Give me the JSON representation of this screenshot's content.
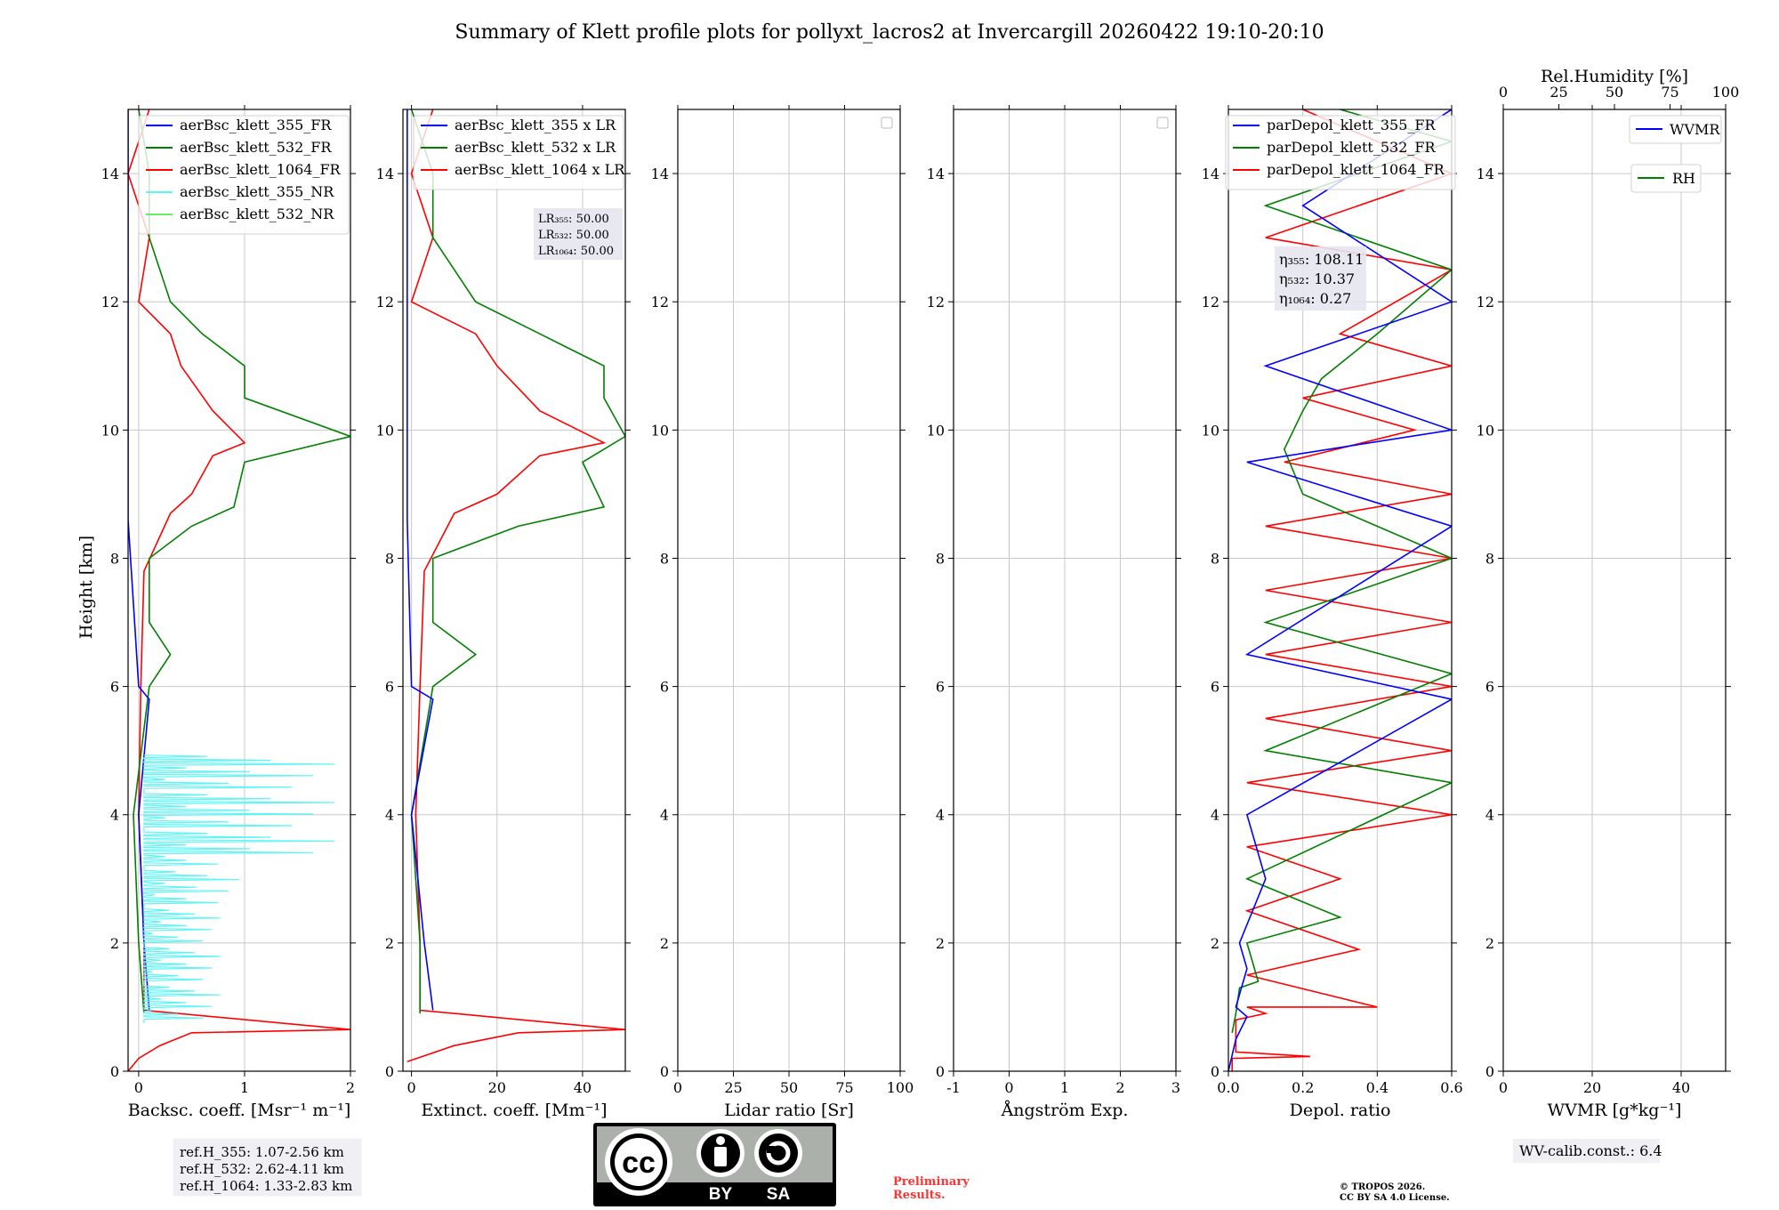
{
  "title": "Summary of Klett profile plots for pollyxt_lacros2 at Invercargill 20260422 19:10-20:10",
  "colors": {
    "c355": "#0000ff",
    "c532": "#008000",
    "c1064": "#ff0000",
    "cnr355": "#5ff5f5",
    "cnr532": "#66ee66",
    "grid": "#c8c8c8"
  },
  "ref_box": [
    "ref.H_355: 1.07-2.56 km",
    "ref.H_532: 2.62-4.11 km",
    "ref.H_1064: 1.33-2.83 km"
  ],
  "license_badge": {
    "cc": "cc",
    "by": "BY",
    "sa": "SA"
  },
  "preliminary": [
    "Preliminary",
    "Results."
  ],
  "copyright": [
    "© TROPOS 2026.",
    "CC BY SA 4.0 License."
  ],
  "wv_calib": "WV-calib.const.: 6.4",
  "chart_data": [
    {
      "type": "line",
      "id": "backscatter",
      "xlabel": "Backsc. coeff. [Msr⁻¹ m⁻¹]",
      "ylabel": "Height [km]",
      "xlim": [
        -0.1,
        2.0
      ],
      "ylim": [
        0,
        15
      ],
      "xticks": [
        0,
        1,
        2
      ],
      "yticks": [
        0,
        2,
        4,
        6,
        8,
        10,
        12,
        14
      ],
      "legend": [
        "aerBsc_klett_355_FR",
        "aerBsc_klett_532_FR",
        "aerBsc_klett_1064_FR",
        "aerBsc_klett_355_NR",
        "aerBsc_klett_532_NR"
      ],
      "series": [
        {
          "name": "aerBsc_klett_1064_FR",
          "color": "c1064",
          "points": [
            [
              -0.1,
              0
            ],
            [
              0.0,
              0.2
            ],
            [
              0.2,
              0.4
            ],
            [
              0.5,
              0.6
            ],
            [
              2.0,
              0.65
            ],
            [
              0.05,
              0.95
            ],
            [
              0.05,
              2.0
            ],
            [
              0.0,
              4.0
            ],
            [
              0.02,
              6.0
            ],
            [
              0.05,
              7.8
            ],
            [
              0.3,
              8.7
            ],
            [
              0.5,
              9.0
            ],
            [
              0.7,
              9.6
            ],
            [
              1.0,
              9.8
            ],
            [
              0.7,
              10.3
            ],
            [
              0.4,
              11.0
            ],
            [
              0.3,
              11.5
            ],
            [
              0.0,
              12.0
            ],
            [
              0.1,
              13.0
            ],
            [
              -0.1,
              14.0
            ],
            [
              0.1,
              15.0
            ]
          ]
        },
        {
          "name": "aerBsc_klett_532_FR",
          "color": "c532",
          "points": [
            [
              0.05,
              0.9
            ],
            [
              0.0,
              2.0
            ],
            [
              -0.05,
              4.0
            ],
            [
              0.1,
              6.0
            ],
            [
              0.3,
              6.5
            ],
            [
              0.1,
              7.0
            ],
            [
              0.1,
              8.0
            ],
            [
              0.5,
              8.5
            ],
            [
              0.9,
              8.8
            ],
            [
              1.0,
              9.5
            ],
            [
              2.0,
              9.9
            ],
            [
              1.0,
              10.5
            ],
            [
              1.0,
              11.0
            ],
            [
              0.6,
              11.5
            ],
            [
              0.3,
              12.0
            ],
            [
              0.1,
              13.0
            ],
            [
              0.1,
              14.0
            ],
            [
              0.0,
              15.0
            ]
          ]
        },
        {
          "name": "aerBsc_klett_355_FR",
          "color": "c355",
          "points": [
            [
              0.1,
              0.95
            ],
            [
              0.05,
              2.0
            ],
            [
              0.0,
              4.0
            ],
            [
              0.1,
              5.8
            ],
            [
              0.0,
              6.0
            ],
            [
              -0.1,
              8.6
            ],
            [
              -0.1,
              9.5
            ],
            [
              -0.1,
              10.0
            ],
            [
              -0.1,
              12.0
            ],
            [
              -0.1,
              15.0
            ]
          ]
        }
      ]
    },
    {
      "type": "line",
      "id": "extinction",
      "xlabel": "Extinct. coeff. [Mm⁻¹]",
      "xlim": [
        -2,
        50
      ],
      "ylim": [
        0,
        15
      ],
      "xticks": [
        0,
        20,
        40
      ],
      "yticks": [
        0,
        2,
        4,
        6,
        8,
        10,
        12,
        14
      ],
      "legend": [
        "aerBsc_klett_355 x LR",
        "aerBsc_klett_532 x LR",
        "aerBsc_klett_1064 x LR"
      ],
      "lidar_ratios": [
        "LR₃₅₅: 50.00",
        "LR₅₃₂: 50.00",
        "LR₁₀₆₄: 50.00"
      ],
      "series": [
        {
          "name": "1064",
          "color": "c1064",
          "points": [
            [
              -1,
              0.15
            ],
            [
              10,
              0.4
            ],
            [
              25,
              0.6
            ],
            [
              50,
              0.65
            ],
            [
              2,
              0.95
            ],
            [
              2,
              2.0
            ],
            [
              1,
              4.0
            ],
            [
              2,
              6.0
            ],
            [
              3,
              7.8
            ],
            [
              10,
              8.7
            ],
            [
              20,
              9.0
            ],
            [
              30,
              9.6
            ],
            [
              45,
              9.8
            ],
            [
              30,
              10.3
            ],
            [
              20,
              11.0
            ],
            [
              15,
              11.5
            ],
            [
              0,
              12.0
            ],
            [
              5,
              13.0
            ],
            [
              0,
              14.0
            ],
            [
              5,
              15.0
            ]
          ]
        },
        {
          "name": "532",
          "color": "c532",
          "points": [
            [
              2,
              0.9
            ],
            [
              2,
              2.0
            ],
            [
              0,
              4.0
            ],
            [
              5,
              6.0
            ],
            [
              15,
              6.5
            ],
            [
              5,
              7.0
            ],
            [
              5,
              8.0
            ],
            [
              25,
              8.5
            ],
            [
              45,
              8.8
            ],
            [
              40,
              9.5
            ],
            [
              50,
              9.9
            ],
            [
              45,
              10.5
            ],
            [
              45,
              11.0
            ],
            [
              30,
              11.5
            ],
            [
              15,
              12.0
            ],
            [
              5,
              13.0
            ],
            [
              5,
              14.0
            ],
            [
              0,
              15.0
            ]
          ]
        },
        {
          "name": "355",
          "color": "c355",
          "points": [
            [
              5,
              0.95
            ],
            [
              3,
              2.0
            ],
            [
              0,
              4.0
            ],
            [
              5,
              5.8
            ],
            [
              0,
              6.0
            ],
            [
              -1,
              8.6
            ],
            [
              -1,
              12.0
            ],
            [
              -1,
              15.0
            ]
          ]
        }
      ]
    },
    {
      "type": "line",
      "id": "lidar_ratio",
      "xlabel": "Lidar ratio [Sr]",
      "xlim": [
        0,
        100
      ],
      "ylim": [
        0,
        15
      ],
      "xticks": [
        0,
        25,
        50,
        75,
        100
      ],
      "yticks": [
        0,
        2,
        4,
        6,
        8,
        10,
        12,
        14
      ],
      "series": []
    },
    {
      "type": "line",
      "id": "angstrom",
      "xlabel": "Ångström Exp.",
      "xlim": [
        -1,
        3
      ],
      "ylim": [
        0,
        15
      ],
      "xticks": [
        -1,
        0,
        1,
        2,
        3
      ],
      "yticks": [
        0,
        2,
        4,
        6,
        8,
        10,
        12,
        14
      ],
      "series": []
    },
    {
      "type": "line",
      "id": "depol",
      "xlabel": "Depol. ratio",
      "xlim": [
        0,
        0.6
      ],
      "ylim": [
        0,
        15
      ],
      "xticks": [
        0.0,
        0.2,
        0.4,
        0.6
      ],
      "xtick_labels": [
        "0.0",
        "0.2",
        "0.4",
        "0.6"
      ],
      "yticks": [
        0,
        2,
        4,
        6,
        8,
        10,
        12,
        14
      ],
      "legend": [
        "parDepol_klett_355_FR",
        "parDepol_klett_532_FR",
        "parDepol_klett_1064_FR"
      ],
      "eta": [
        "η₃₅₅: 108.11",
        "η₅₃₂: 10.37",
        "η₁₀₆₄: 0.27"
      ],
      "series": [
        {
          "name": "1064",
          "color": "c1064",
          "points": [
            [
              0.01,
              0.0
            ],
            [
              0.01,
              0.2
            ],
            [
              0.22,
              0.23
            ],
            [
              0.02,
              0.3
            ],
            [
              0.02,
              0.8
            ],
            [
              0.1,
              0.9
            ],
            [
              0.05,
              1.0
            ],
            [
              0.4,
              1.0
            ],
            [
              0.05,
              1.5
            ],
            [
              0.35,
              1.9
            ],
            [
              0.05,
              2.5
            ],
            [
              0.3,
              3.0
            ],
            [
              0.05,
              3.5
            ],
            [
              0.6,
              4.0
            ],
            [
              0.05,
              4.5
            ],
            [
              0.6,
              5.0
            ],
            [
              0.1,
              5.5
            ],
            [
              0.6,
              6.0
            ],
            [
              0.1,
              6.5
            ],
            [
              0.6,
              7.0
            ],
            [
              0.1,
              7.5
            ],
            [
              0.6,
              8.0
            ],
            [
              0.1,
              8.5
            ],
            [
              0.6,
              9.0
            ],
            [
              0.15,
              9.5
            ],
            [
              0.5,
              10.0
            ],
            [
              0.2,
              10.5
            ],
            [
              0.6,
              11.0
            ],
            [
              0.3,
              11.5
            ],
            [
              0.6,
              12.5
            ],
            [
              0.1,
              13.0
            ],
            [
              0.6,
              14.0
            ],
            [
              0.2,
              15.0
            ]
          ]
        },
        {
          "name": "532",
          "color": "c532",
          "points": [
            [
              0.01,
              0.6
            ],
            [
              0.02,
              0.9
            ],
            [
              0.03,
              1.3
            ],
            [
              0.08,
              1.4
            ],
            [
              0.05,
              2.0
            ],
            [
              0.3,
              2.4
            ],
            [
              0.05,
              3.0
            ],
            [
              0.6,
              4.5
            ],
            [
              0.1,
              5.0
            ],
            [
              0.6,
              6.2
            ],
            [
              0.1,
              7.0
            ],
            [
              0.6,
              8.0
            ],
            [
              0.2,
              9.0
            ],
            [
              0.15,
              9.7
            ],
            [
              0.2,
              10.3
            ],
            [
              0.25,
              10.8
            ],
            [
              0.4,
              11.5
            ],
            [
              0.6,
              12.5
            ],
            [
              0.1,
              13.5
            ],
            [
              0.6,
              14.5
            ],
            [
              0.3,
              15.0
            ]
          ]
        },
        {
          "name": "355",
          "color": "c355",
          "points": [
            [
              0.0,
              0.0
            ],
            [
              0.02,
              0.5
            ],
            [
              0.05,
              0.85
            ],
            [
              0.02,
              1.0
            ],
            [
              0.05,
              1.6
            ],
            [
              0.03,
              2.0
            ],
            [
              0.1,
              3.0
            ],
            [
              0.05,
              4.0
            ],
            [
              0.6,
              5.8
            ],
            [
              0.05,
              6.5
            ],
            [
              0.6,
              8.5
            ],
            [
              0.05,
              9.5
            ],
            [
              0.6,
              10.0
            ],
            [
              0.1,
              11.0
            ],
            [
              0.6,
              12.0
            ],
            [
              0.2,
              13.5
            ],
            [
              0.6,
              15.0
            ]
          ]
        }
      ]
    },
    {
      "type": "line",
      "id": "wvmr",
      "xlabel": "WVMR [g*kg⁻¹]",
      "top_xlabel": "Rel.Humidity [%]",
      "xlim": [
        0,
        50
      ],
      "top_xlim": [
        0,
        100
      ],
      "ylim": [
        0,
        15
      ],
      "xticks": [
        0,
        20,
        40
      ],
      "top_xticks": [
        0,
        25,
        50,
        75,
        100
      ],
      "yticks": [
        0,
        2,
        4,
        6,
        8,
        10,
        12,
        14
      ],
      "legend": [
        "WVMR",
        "RH"
      ],
      "series": []
    }
  ]
}
